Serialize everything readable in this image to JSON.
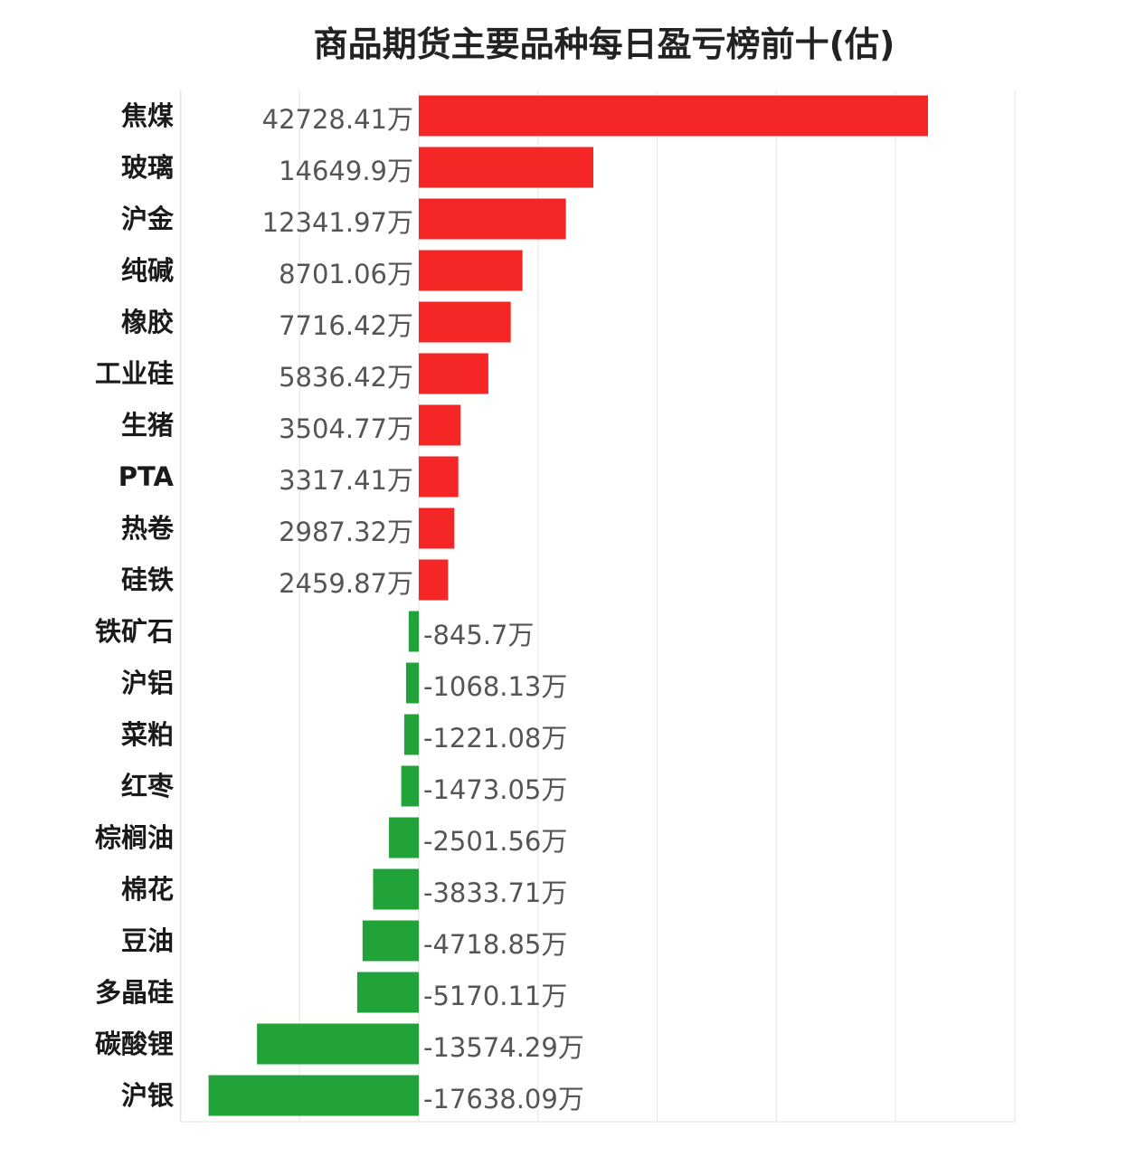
{
  "chart_data": {
    "type": "bar",
    "orientation": "horizontal",
    "title": "商品期货主要品种每日盈亏榜前十(估)",
    "unit_suffix": "万",
    "grid": true,
    "positive_color": "#f52626",
    "negative_color": "#21a33a",
    "categories": [
      "焦煤",
      "玻璃",
      "沪金",
      "纯碱",
      "橡胶",
      "工业硅",
      "生猪",
      "PTA",
      "热卷",
      "硅铁",
      "铁矿石",
      "沪铝",
      "菜粕",
      "红枣",
      "棕榈油",
      "棉花",
      "豆油",
      "多晶硅",
      "碳酸锂",
      "沪银"
    ],
    "values": [
      42728.41,
      14649.9,
      12341.97,
      8701.06,
      7716.42,
      5836.42,
      3504.77,
      3317.41,
      2987.32,
      2459.87,
      -845.7,
      -1068.13,
      -1221.08,
      -1473.05,
      -2501.56,
      -3833.71,
      -4718.85,
      -5170.11,
      -13574.29,
      -17638.09
    ],
    "value_labels": [
      "42728.41万",
      "14649.9万",
      "12341.97万",
      "8701.06万",
      "7716.42万",
      "5836.42万",
      "3504.77万",
      "3317.41万",
      "2987.32万",
      "2459.87万",
      "-845.7万",
      "-1068.13万",
      "-1221.08万",
      "-1473.05万",
      "-2501.56万",
      "-3833.71万",
      "-4718.85万",
      "-5170.11万",
      "-13574.29万",
      "-17638.09万"
    ],
    "xlim": [
      -20000,
      50000
    ]
  }
}
